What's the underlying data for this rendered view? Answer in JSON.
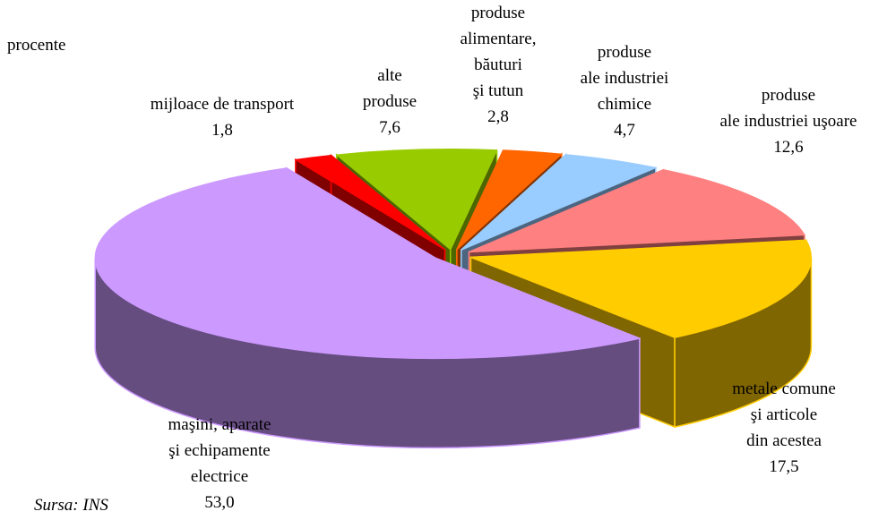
{
  "chart_data": {
    "type": "pie3d",
    "unit": "procente",
    "source": "Sursa: INS",
    "categories": [
      "mijloace de transport",
      "alte\nproduse",
      "produse\nalimentare,\nbăuturi\nşi tutun",
      "produse\nale industriei\nchimice",
      "produse\nale industriei uşoare",
      "metale comune\nşi articole\ndin acestea",
      "maşini, aparate\nşi echipamente\nelectrice"
    ],
    "values": [
      1.8,
      7.6,
      2.8,
      4.7,
      12.6,
      17.5,
      53.0
    ],
    "value_labels": [
      "1,8",
      "7,6",
      "2,8",
      "4,7",
      "12,6",
      "17,5",
      "53,0"
    ],
    "colors": [
      "#ff0000",
      "#99cc00",
      "#ff6600",
      "#99ccff",
      "#ff8080",
      "#ffcc00",
      "#cc99ff"
    ]
  }
}
